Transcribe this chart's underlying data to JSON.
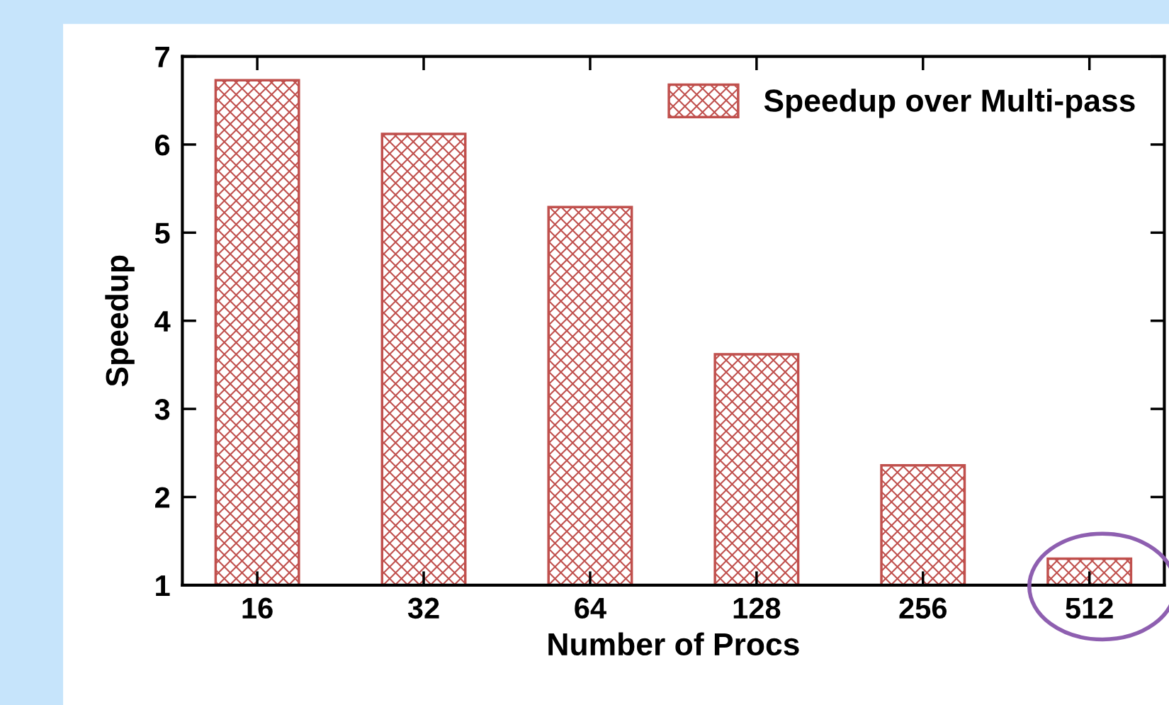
{
  "chart_data": {
    "type": "bar",
    "xlabel": "Number of Procs",
    "ylabel": "Speedup",
    "categories": [
      "16",
      "32",
      "64",
      "128",
      "256",
      "512"
    ],
    "series": [
      {
        "name": "Speedup over Multi-pass",
        "color": "#c0504d",
        "values": [
          6.73,
          6.12,
          5.29,
          3.62,
          2.36,
          1.3
        ]
      }
    ],
    "ylim": [
      1,
      7
    ],
    "yticks": [
      1,
      2,
      3,
      4,
      5,
      6,
      7
    ],
    "grid": false,
    "legend": "top right"
  }
}
